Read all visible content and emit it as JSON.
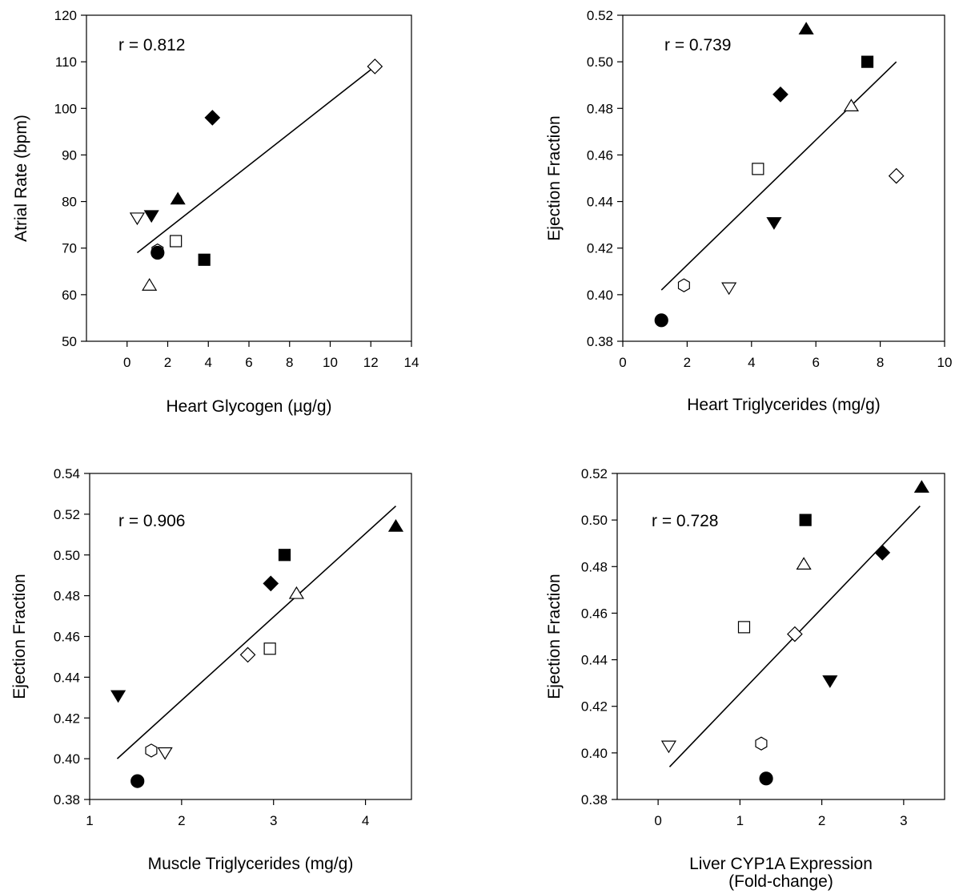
{
  "chart_data": [
    {
      "type": "scatter",
      "xlabel": "Heart Glycogen (µg/g)",
      "ylabel": "Atrial Rate (bpm)",
      "annotation": "r = 0.812",
      "xlim": [
        -2,
        14
      ],
      "ylim": [
        50,
        120
      ],
      "xticks": [
        0,
        2,
        4,
        6,
        8,
        10,
        12,
        14
      ],
      "yticks": [
        50,
        60,
        70,
        80,
        90,
        100,
        110,
        120
      ],
      "points": [
        {
          "x": 12.2,
          "y": 109,
          "marker": "diamond-open"
        },
        {
          "x": 4.2,
          "y": 98,
          "marker": "diamond-filled"
        },
        {
          "x": 2.5,
          "y": 80.5,
          "marker": "triangle-up-filled"
        },
        {
          "x": 1.2,
          "y": 77,
          "marker": "triangle-down-filled"
        },
        {
          "x": 0.5,
          "y": 76.5,
          "marker": "triangle-down-open"
        },
        {
          "x": 2.4,
          "y": 71.5,
          "marker": "square-open"
        },
        {
          "x": 1.5,
          "y": 69.5,
          "marker": "hexagon-open"
        },
        {
          "x": 1.5,
          "y": 69,
          "marker": "circle-filled"
        },
        {
          "x": 3.8,
          "y": 67.5,
          "marker": "square-filled"
        },
        {
          "x": 1.1,
          "y": 62,
          "marker": "triangle-up-open"
        }
      ],
      "fit_line": [
        [
          0.5,
          69
        ],
        [
          12.2,
          109
        ]
      ]
    },
    {
      "type": "scatter",
      "xlabel": "Heart Triglycerides (mg/g)",
      "ylabel": "Ejection Fraction",
      "annotation": "r = 0.739",
      "xlim": [
        0,
        10
      ],
      "ylim": [
        0.38,
        0.52
      ],
      "xticks": [
        0,
        2,
        4,
        6,
        8,
        10
      ],
      "yticks": [
        0.38,
        0.4,
        0.42,
        0.44,
        0.46,
        0.48,
        0.5,
        0.52
      ],
      "points": [
        {
          "x": 5.7,
          "y": 0.514,
          "marker": "triangle-up-filled"
        },
        {
          "x": 7.6,
          "y": 0.5,
          "marker": "square-filled"
        },
        {
          "x": 4.9,
          "y": 0.486,
          "marker": "diamond-filled"
        },
        {
          "x": 7.1,
          "y": 0.481,
          "marker": "triangle-up-open"
        },
        {
          "x": 4.2,
          "y": 0.454,
          "marker": "square-open"
        },
        {
          "x": 8.5,
          "y": 0.451,
          "marker": "diamond-open"
        },
        {
          "x": 4.7,
          "y": 0.431,
          "marker": "triangle-down-filled"
        },
        {
          "x": 1.9,
          "y": 0.404,
          "marker": "hexagon-open"
        },
        {
          "x": 3.3,
          "y": 0.403,
          "marker": "triangle-down-open"
        },
        {
          "x": 1.2,
          "y": 0.389,
          "marker": "circle-filled"
        }
      ],
      "fit_line": [
        [
          1.2,
          0.402
        ],
        [
          8.5,
          0.5
        ]
      ]
    },
    {
      "type": "scatter",
      "xlabel": "Muscle Triglycerides (mg/g)",
      "ylabel": "Ejection Fraction",
      "annotation": "r = 0.906",
      "xlim": [
        1,
        4.5
      ],
      "ylim": [
        0.38,
        0.54
      ],
      "xticks": [
        1,
        2,
        3,
        4
      ],
      "yticks": [
        0.38,
        0.4,
        0.42,
        0.44,
        0.46,
        0.48,
        0.5,
        0.52,
        0.54
      ],
      "points": [
        {
          "x": 4.33,
          "y": 0.514,
          "marker": "triangle-up-filled"
        },
        {
          "x": 3.12,
          "y": 0.5,
          "marker": "square-filled"
        },
        {
          "x": 2.97,
          "y": 0.486,
          "marker": "diamond-filled"
        },
        {
          "x": 3.25,
          "y": 0.481,
          "marker": "triangle-up-open"
        },
        {
          "x": 2.96,
          "y": 0.454,
          "marker": "square-open"
        },
        {
          "x": 2.72,
          "y": 0.451,
          "marker": "diamond-open"
        },
        {
          "x": 1.31,
          "y": 0.431,
          "marker": "triangle-down-filled"
        },
        {
          "x": 1.67,
          "y": 0.404,
          "marker": "hexagon-open"
        },
        {
          "x": 1.82,
          "y": 0.403,
          "marker": "triangle-down-open"
        },
        {
          "x": 1.52,
          "y": 0.389,
          "marker": "circle-filled"
        }
      ],
      "fit_line": [
        [
          1.3,
          0.4
        ],
        [
          4.33,
          0.524
        ]
      ]
    },
    {
      "type": "scatter",
      "xlabel": "Liver CYP1A Expression\n(Fold-change)",
      "ylabel": "Ejection Fraction",
      "annotation": "r = 0.728",
      "xlim": [
        -0.5,
        3.5
      ],
      "ylim": [
        0.38,
        0.52
      ],
      "xticks": [
        0,
        1,
        2,
        3
      ],
      "yticks": [
        0.38,
        0.4,
        0.42,
        0.44,
        0.46,
        0.48,
        0.5,
        0.52
      ],
      "points": [
        {
          "x": 3.22,
          "y": 0.514,
          "marker": "triangle-up-filled"
        },
        {
          "x": 1.8,
          "y": 0.5,
          "marker": "square-filled"
        },
        {
          "x": 2.74,
          "y": 0.486,
          "marker": "diamond-filled"
        },
        {
          "x": 1.78,
          "y": 0.481,
          "marker": "triangle-up-open"
        },
        {
          "x": 1.05,
          "y": 0.454,
          "marker": "square-open"
        },
        {
          "x": 1.67,
          "y": 0.451,
          "marker": "diamond-open"
        },
        {
          "x": 2.1,
          "y": 0.431,
          "marker": "triangle-down-filled"
        },
        {
          "x": 1.26,
          "y": 0.404,
          "marker": "hexagon-open"
        },
        {
          "x": 0.13,
          "y": 0.403,
          "marker": "triangle-down-open"
        },
        {
          "x": 1.32,
          "y": 0.389,
          "marker": "circle-filled"
        }
      ],
      "fit_line": [
        [
          0.14,
          0.394
        ],
        [
          3.2,
          0.506
        ]
      ]
    }
  ]
}
